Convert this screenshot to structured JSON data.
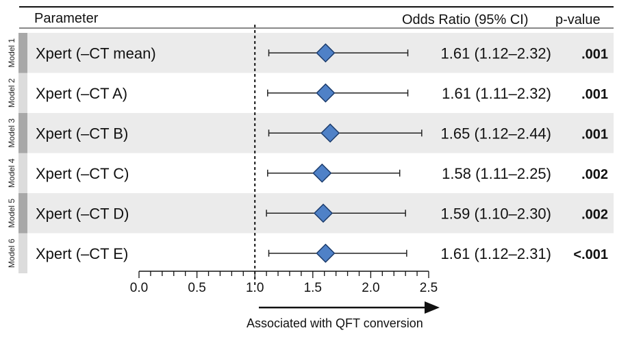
{
  "headers": {
    "parameter": "Parameter",
    "odds_ratio": "Odds Ratio (95% CI)",
    "p_value": "p-value"
  },
  "chart_data": {
    "type": "forest",
    "xlabel": "Associated with QFT conversion",
    "xlim": [
      0.0,
      2.5
    ],
    "reference_line": 1.0,
    "x_ticks": [
      "0.0",
      "0.5",
      "1.0",
      "1.5",
      "2.0",
      "2.5"
    ],
    "rows": [
      {
        "model": "Model 1",
        "label": "Xpert (–CT mean)",
        "or": 1.61,
        "lo": 1.12,
        "hi": 2.32,
        "or_text": "1.61 (1.12–2.32)",
        "p": ".001"
      },
      {
        "model": "Model 2",
        "label": "Xpert (–CT A)",
        "or": 1.61,
        "lo": 1.11,
        "hi": 2.32,
        "or_text": "1.61 (1.11–2.32)",
        "p": ".001"
      },
      {
        "model": "Model 3",
        "label": "Xpert (–CT B)",
        "or": 1.65,
        "lo": 1.12,
        "hi": 2.44,
        "or_text": "1.65 (1.12–2.44)",
        "p": ".001"
      },
      {
        "model": "Model 4",
        "label": "Xpert (–CT C)",
        "or": 1.58,
        "lo": 1.11,
        "hi": 2.25,
        "or_text": "1.58 (1.11–2.25)",
        "p": ".002"
      },
      {
        "model": "Model 5",
        "label": "Xpert (–CT D)",
        "or": 1.59,
        "lo": 1.1,
        "hi": 2.3,
        "or_text": "1.59 (1.10–2.30)",
        "p": ".002"
      },
      {
        "model": "Model 6",
        "label": "Xpert (–CT E)",
        "or": 1.61,
        "lo": 1.12,
        "hi": 2.31,
        "or_text": "1.61 (1.12–2.31)",
        "p": "<.001"
      }
    ],
    "colors": {
      "marker_fill": "#4f81c7",
      "marker_stroke": "#1a3a6a",
      "shade_row": "#ebebeb",
      "shade_tab": "#a8a8a8",
      "light_tab": "#dcdcdc"
    }
  }
}
